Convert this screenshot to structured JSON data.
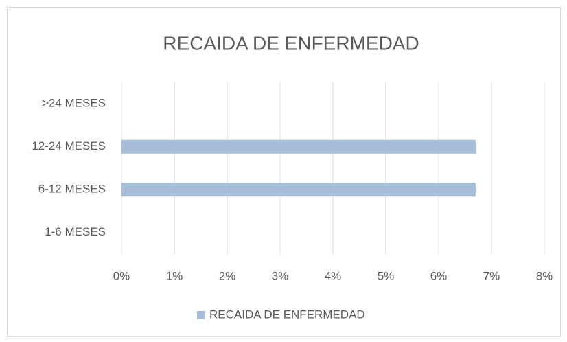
{
  "chart_data": {
    "type": "barh",
    "title": "RECAIDA DE ENFERMEDAD",
    "categories": [
      "1-6 MESES",
      "6-12 MESES",
      "12-24 MESES",
      ">24 MESES"
    ],
    "series": [
      {
        "name": "RECAIDA DE ENFERMEDAD",
        "color": "#a6bed7",
        "values": [
          0,
          6.7,
          6.7,
          0
        ]
      }
    ],
    "xlim": [
      0,
      8
    ],
    "xticks": [
      {
        "value": 0,
        "label": "0%"
      },
      {
        "value": 1,
        "label": "1%"
      },
      {
        "value": 2,
        "label": "2%"
      },
      {
        "value": 3,
        "label": "3%"
      },
      {
        "value": 4,
        "label": "4%"
      },
      {
        "value": 5,
        "label": "5%"
      },
      {
        "value": 6,
        "label": "6%"
      },
      {
        "value": 7,
        "label": "7%"
      },
      {
        "value": 8,
        "label": "8%"
      }
    ],
    "grid": true,
    "legend": "bottom"
  }
}
